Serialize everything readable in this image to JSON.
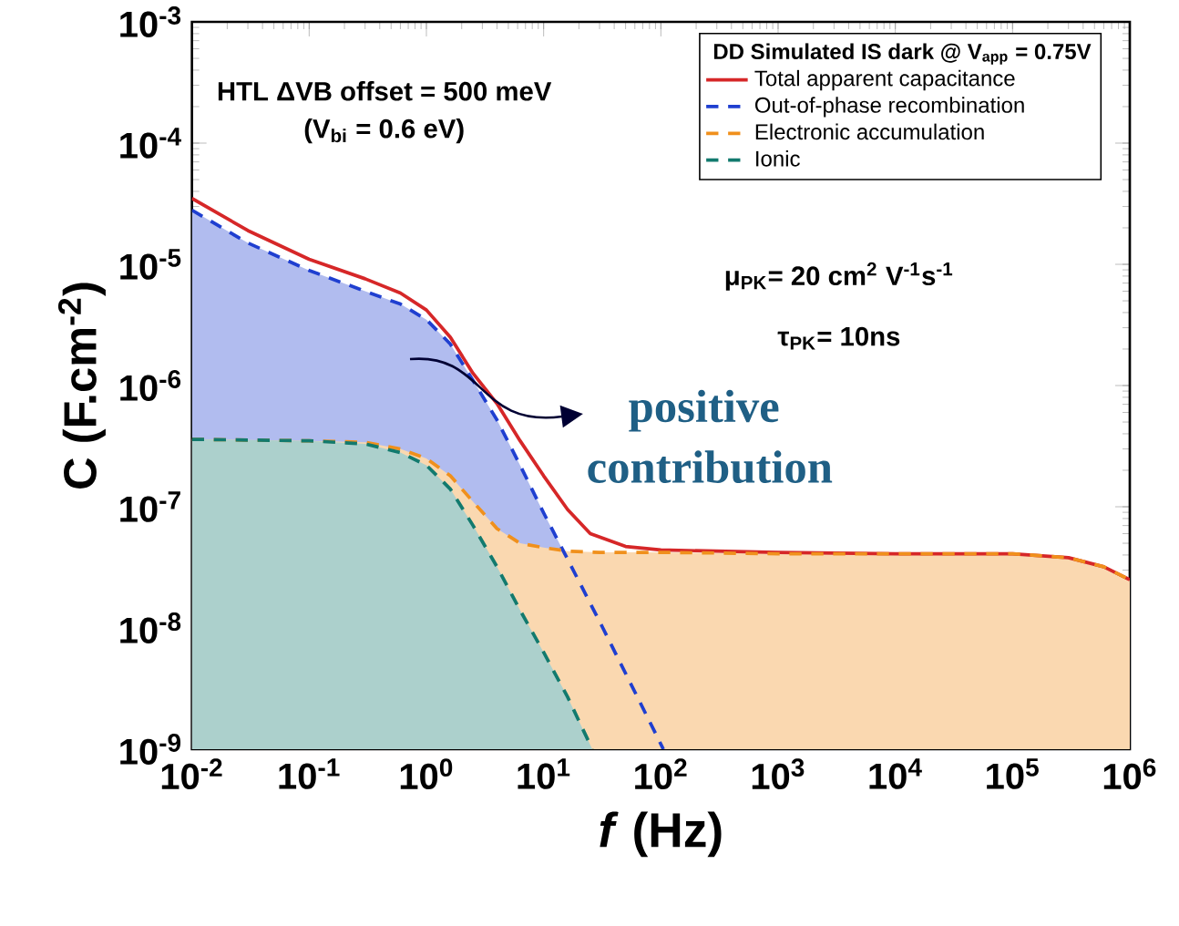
{
  "chart_data": {
    "type": "line",
    "xlabel": "*f* (Hz)",
    "ylabel": "C (F.cm$^{-2}$)",
    "legend_title": "DD Simulated IS dark @ V$_{app}$ = 0.75V",
    "log": "xy",
    "legend": "top right",
    "grid": false,
    "xlim": [
      0.01,
      1000000
    ],
    "ylim": [
      1e-09,
      0.001
    ],
    "xticks": [
      {
        "value": 0.01,
        "label": "10$^{-2}$"
      },
      {
        "value": 0.1,
        "label": "10$^{-1}$"
      },
      {
        "value": 1,
        "label": "10$^{0}$"
      },
      {
        "value": 10,
        "label": "10$^{1}$"
      },
      {
        "value": 100,
        "label": "10$^{2}$"
      },
      {
        "value": 1000,
        "label": "10$^{3}$"
      },
      {
        "value": 10000,
        "label": "10$^{4}$"
      },
      {
        "value": 100000,
        "label": "10$^{5}$"
      },
      {
        "value": 1000000,
        "label": "10$^{6}$"
      }
    ],
    "yticks": [
      {
        "value": 1e-09,
        "label": "10$^{-9}$"
      },
      {
        "value": 1e-08,
        "label": "10$^{-8}$"
      },
      {
        "value": 1e-07,
        "label": "10$^{-7}$"
      },
      {
        "value": 1e-06,
        "label": "10$^{-6}$"
      },
      {
        "value": 1e-05,
        "label": "10$^{-5}$"
      },
      {
        "value": 0.0001,
        "label": "10$^{-4}$"
      },
      {
        "value": 0.001,
        "label": "10$^{-3}$"
      }
    ],
    "series": [
      {
        "name": "Total apparent capacitance",
        "line_style": "solid",
        "color": "#d62728",
        "x": [
          0.01,
          0.03,
          0.1,
          0.3,
          0.6,
          1,
          1.6,
          2.5,
          4,
          6.3,
          10,
          16,
          25,
          50,
          100,
          1000,
          10000,
          100000,
          300000,
          600000,
          1000000
        ],
        "values": [
          3.5e-05,
          1.9e-05,
          1.1e-05,
          7.6e-06,
          5.8e-06,
          4.2e-06,
          2.5e-06,
          1.26e-06,
          7.1e-07,
          3.5e-07,
          1.8e-07,
          9.5e-08,
          6e-08,
          4.7e-08,
          4.4e-08,
          4.2e-08,
          4.1e-08,
          4.1e-08,
          3.8e-08,
          3.2e-08,
          2.5e-08
        ]
      },
      {
        "name": "Out-of-phase recombination",
        "type": "area",
        "line_style": "dashed",
        "color": "#1f3fd0",
        "x": [
          0.01,
          0.03,
          0.1,
          0.3,
          0.6,
          1,
          1.6,
          2.5,
          4,
          6.3,
          10,
          16,
          32,
          63,
          105
        ],
        "values": [
          2.8e-05,
          1.5e-05,
          8.9e-06,
          6e-06,
          4.7e-06,
          3.5e-06,
          2.2e-06,
          1.1e-06,
          5.2e-07,
          2.2e-07,
          8.9e-08,
          3.7e-08,
          1e-08,
          2.7e-09,
          1e-09
        ]
      },
      {
        "name": "Electronic accumulation",
        "type": "area",
        "line_style": "dashed",
        "color": "#f0901c",
        "x": [
          0.01,
          0.1,
          0.3,
          0.6,
          1,
          1.6,
          2.5,
          4,
          6.3,
          10,
          16,
          30,
          100,
          1000,
          10000,
          100000,
          300000,
          600000,
          1000000
        ],
        "values": [
          3.6e-07,
          3.5e-07,
          3.4e-07,
          3e-07,
          2.5e-07,
          1.8e-07,
          1.1e-07,
          6.6e-08,
          5e-08,
          4.6e-08,
          4.3e-08,
          4.2e-08,
          4.2e-08,
          4.1e-08,
          4.1e-08,
          4.1e-08,
          3.8e-08,
          3.2e-08,
          2.5e-08
        ]
      },
      {
        "name": "Ionic",
        "type": "area",
        "line_style": "dashed",
        "color": "#127a6e",
        "x": [
          0.01,
          0.1,
          0.3,
          0.6,
          1,
          1.6,
          2.5,
          4,
          6.3,
          10,
          16,
          26
        ],
        "values": [
          3.6e-07,
          3.5e-07,
          3.3e-07,
          2.8e-07,
          2.2e-07,
          1.4e-07,
          7e-08,
          3.2e-08,
          1.4e-08,
          6.3e-09,
          2.7e-09,
          1e-09
        ]
      }
    ],
    "annotations": [
      "HTL ΔVB offset = 500 meV",
      "(V$_{bi}$ = 0.6 eV)",
      "μ$_{PK}$= 20 cm$^{2}$ V$^{-1}$s$^{-1}$",
      "τ$_{PK}$= 10ns",
      "positive contribution"
    ]
  }
}
